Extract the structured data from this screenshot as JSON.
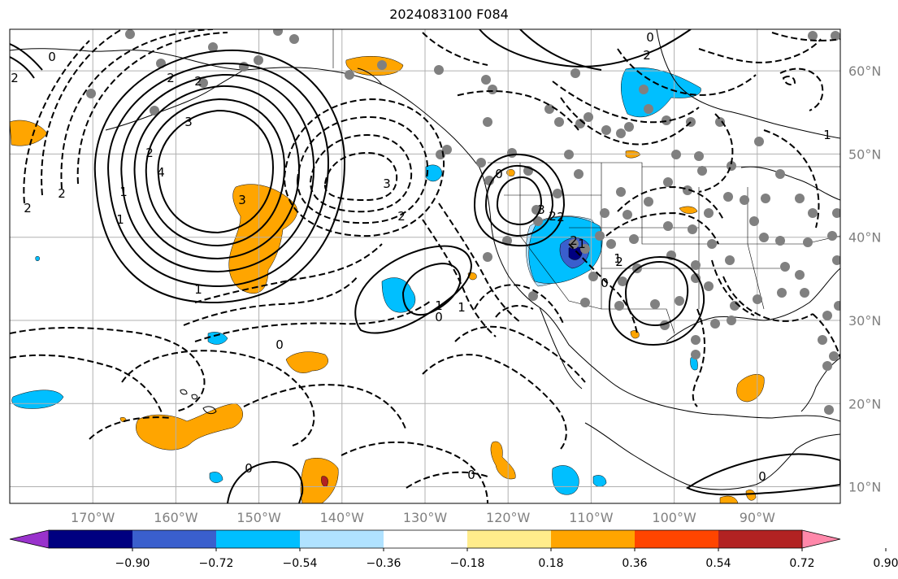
{
  "title": "2024083100 F084",
  "map": {
    "lon_range": [
      -180,
      -80
    ],
    "lat_range": [
      8,
      65
    ],
    "lon_ticks": [
      -170,
      -160,
      -150,
      -140,
      -130,
      -120,
      -110,
      -100,
      -90
    ],
    "lat_ticks": [
      10,
      20,
      30,
      40,
      50,
      60
    ],
    "lon_labels": [
      "170°W",
      "160°W",
      "150°W",
      "140°W",
      "130°W",
      "120°W",
      "110°W",
      "100°W",
      "90°W"
    ],
    "lat_labels": [
      "10°N",
      "20°N",
      "30°N",
      "40°N",
      "50°N",
      "60°N"
    ],
    "grid": true
  },
  "colorbar": {
    "boundaries": [
      -0.9,
      -0.72,
      -0.54,
      -0.36,
      -0.18,
      0.18,
      0.36,
      0.54,
      0.72,
      0.9
    ],
    "labels": [
      "−0.90",
      "−0.72",
      "−0.54",
      "−0.36",
      "−0.18",
      "0.18",
      "0.36",
      "0.54",
      "0.72",
      "0.90"
    ],
    "colors": [
      "#9932cc",
      "#000080",
      "#3a5fcd",
      "#00bfff",
      "#b0e2ff",
      "#ffffff",
      "#ffec8b",
      "#ffa500",
      "#ff4500",
      "#b22222",
      "#ff88aa"
    ],
    "extend": "both"
  },
  "contour_labels": [
    "2",
    "0",
    "2",
    "2",
    "3",
    "2",
    "1",
    "1",
    "2",
    "3",
    "2",
    "3",
    "4",
    "1",
    "1",
    "2",
    "0",
    "0",
    "0",
    "0",
    "1",
    "0",
    "2",
    "2",
    "3",
    "2",
    "1",
    "2",
    "2",
    "0",
    "1",
    "0",
    "1",
    "0"
  ],
  "colors": {
    "contour": "#000000",
    "grid": "#b0b0b0",
    "coast": "#000000",
    "dot": "#808080"
  }
}
